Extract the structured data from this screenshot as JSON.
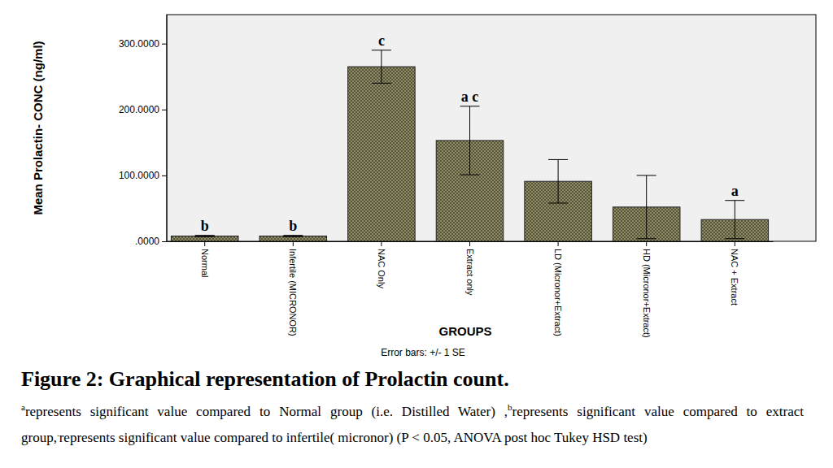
{
  "chart_data": {
    "type": "bar",
    "y_label": "Mean Prolactin- CONC (ng/ml)",
    "x_label": "GROUPS",
    "error_note": "Error bars: +/- 1 SE",
    "categories": [
      "Normal",
      "Infertile (MICRONOR)",
      "NAC Only",
      "Extract only",
      "LD (Micronor+Extract)",
      "HD (Micronor+Extract)",
      "NAC + Extract"
    ],
    "values": [
      8,
      8,
      265,
      153,
      91,
      52,
      33
    ],
    "errors": [
      1,
      1,
      25,
      52,
      33,
      48,
      29
    ],
    "annotations": [
      "b",
      "b",
      "c",
      "a c",
      null,
      null,
      "a"
    ],
    "color": "#8f8c66",
    "ylim": [
      0,
      344
    ],
    "yticks": [
      {
        "value": 0,
        "label": ".0000"
      },
      {
        "value": 100,
        "label": "100.0000"
      },
      {
        "value": 200,
        "label": "200.0000"
      },
      {
        "value": 300,
        "label": "300.0000"
      }
    ],
    "grid": false,
    "caption_title": "Figure 2: Graphical representation of Prolactin count.",
    "caption_notes": [
      {
        "symbol": "a",
        "text": "represents significant value compared to Normal group (i.e. Distilled Water) ,"
      },
      {
        "symbol": "b",
        "text": "represents significant value compared to extract group,"
      },
      {
        "symbol": ".",
        "text": "represents significant value compared to infertile( micronor) (P < 0.05, ANOVA post hoc Tukey HSD test)"
      }
    ]
  }
}
